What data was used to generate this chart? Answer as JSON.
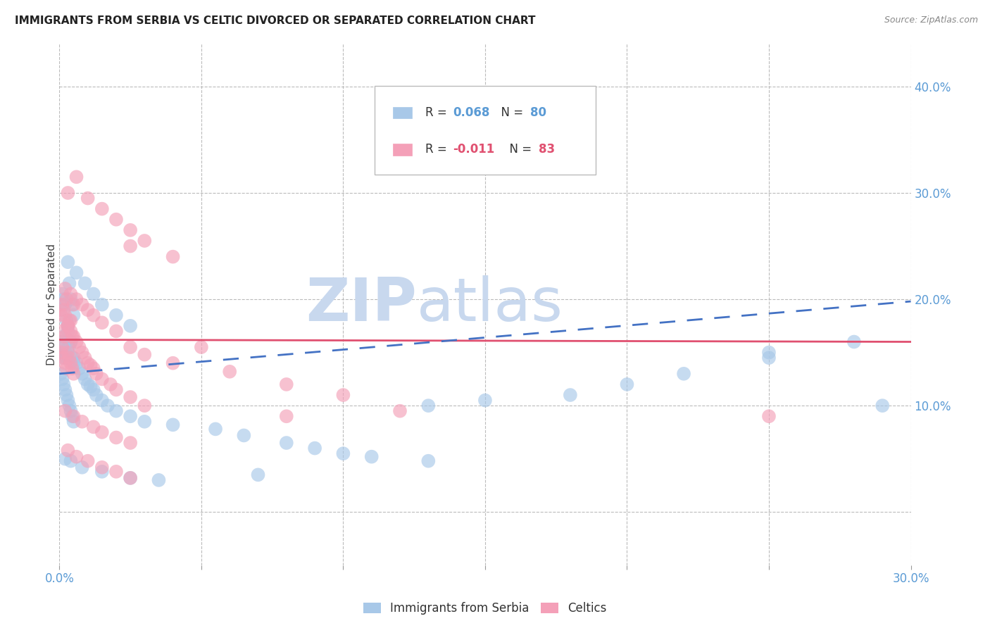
{
  "title": "IMMIGRANTS FROM SERBIA VS CELTIC DIVORCED OR SEPARATED CORRELATION CHART",
  "source": "Source: ZipAtlas.com",
  "ylabel": "Divorced or Separated",
  "xlim": [
    0.0,
    0.3
  ],
  "ylim": [
    -0.05,
    0.44
  ],
  "yticks": [
    0.0,
    0.1,
    0.2,
    0.3,
    0.4
  ],
  "ytick_labels": [
    "",
    "10.0%",
    "20.0%",
    "30.0%",
    "40.0%"
  ],
  "xticks": [
    0.0,
    0.05,
    0.1,
    0.15,
    0.2,
    0.25,
    0.3
  ],
  "xtick_labels": [
    "0.0%",
    "",
    "",
    "",
    "",
    "",
    "30.0%"
  ],
  "blue_color": "#A8C8E8",
  "pink_color": "#F4A0B8",
  "blue_line_color": "#4472C4",
  "pink_line_color": "#E05070",
  "watermark_color": "#C8D8EE",
  "blue_line_x0": 0.0,
  "blue_line_y0": 0.13,
  "blue_line_x1": 0.3,
  "blue_line_y1": 0.198,
  "pink_line_x0": 0.0,
  "pink_line_y0": 0.162,
  "pink_line_x1": 0.3,
  "pink_line_y1": 0.16,
  "blue_scatter_x": [
    0.0005,
    0.001,
    0.0015,
    0.002,
    0.0025,
    0.003,
    0.0035,
    0.004,
    0.0045,
    0.005,
    0.0005,
    0.001,
    0.0015,
    0.002,
    0.0025,
    0.003,
    0.0035,
    0.004,
    0.0045,
    0.005,
    0.0005,
    0.001,
    0.0015,
    0.002,
    0.0025,
    0.003,
    0.0035,
    0.004,
    0.0045,
    0.005,
    0.001,
    0.002,
    0.003,
    0.004,
    0.005,
    0.006,
    0.007,
    0.008,
    0.009,
    0.01,
    0.011,
    0.012,
    0.013,
    0.015,
    0.017,
    0.02,
    0.025,
    0.03,
    0.04,
    0.055,
    0.065,
    0.08,
    0.09,
    0.1,
    0.11,
    0.13,
    0.15,
    0.18,
    0.2,
    0.22,
    0.25,
    0.28,
    0.003,
    0.006,
    0.009,
    0.012,
    0.015,
    0.02,
    0.025,
    0.002,
    0.004,
    0.008,
    0.015,
    0.025,
    0.035,
    0.07,
    0.13,
    0.25,
    0.29
  ],
  "blue_scatter_y": [
    0.19,
    0.205,
    0.2,
    0.195,
    0.18,
    0.175,
    0.215,
    0.2,
    0.195,
    0.185,
    0.155,
    0.16,
    0.165,
    0.15,
    0.145,
    0.17,
    0.155,
    0.16,
    0.145,
    0.14,
    0.13,
    0.125,
    0.12,
    0.115,
    0.11,
    0.105,
    0.1,
    0.095,
    0.09,
    0.085,
    0.145,
    0.15,
    0.155,
    0.16,
    0.145,
    0.14,
    0.135,
    0.13,
    0.125,
    0.12,
    0.118,
    0.115,
    0.11,
    0.105,
    0.1,
    0.095,
    0.09,
    0.085,
    0.082,
    0.078,
    0.072,
    0.065,
    0.06,
    0.055,
    0.052,
    0.048,
    0.105,
    0.11,
    0.12,
    0.13,
    0.145,
    0.16,
    0.235,
    0.225,
    0.215,
    0.205,
    0.195,
    0.185,
    0.175,
    0.05,
    0.048,
    0.042,
    0.038,
    0.032,
    0.03,
    0.035,
    0.1,
    0.15,
    0.1
  ],
  "pink_scatter_x": [
    0.0005,
    0.001,
    0.0015,
    0.002,
    0.0025,
    0.003,
    0.0035,
    0.004,
    0.0045,
    0.005,
    0.0005,
    0.001,
    0.0015,
    0.002,
    0.0025,
    0.003,
    0.0035,
    0.004,
    0.0045,
    0.005,
    0.001,
    0.002,
    0.003,
    0.004,
    0.005,
    0.006,
    0.007,
    0.008,
    0.009,
    0.01,
    0.011,
    0.012,
    0.013,
    0.015,
    0.018,
    0.02,
    0.025,
    0.03,
    0.002,
    0.004,
    0.006,
    0.008,
    0.01,
    0.012,
    0.015,
    0.02,
    0.002,
    0.005,
    0.008,
    0.012,
    0.015,
    0.02,
    0.025,
    0.025,
    0.03,
    0.04,
    0.06,
    0.08,
    0.1,
    0.12,
    0.025,
    0.05,
    0.08,
    0.25,
    0.003,
    0.006,
    0.01,
    0.015,
    0.02,
    0.025,
    0.03,
    0.04,
    0.003,
    0.006,
    0.01,
    0.015,
    0.02,
    0.025
  ],
  "pink_scatter_y": [
    0.185,
    0.195,
    0.19,
    0.185,
    0.2,
    0.175,
    0.18,
    0.17,
    0.165,
    0.195,
    0.15,
    0.155,
    0.145,
    0.14,
    0.135,
    0.15,
    0.145,
    0.14,
    0.135,
    0.13,
    0.17,
    0.165,
    0.175,
    0.18,
    0.165,
    0.16,
    0.155,
    0.15,
    0.145,
    0.14,
    0.138,
    0.135,
    0.13,
    0.125,
    0.12,
    0.115,
    0.108,
    0.1,
    0.21,
    0.205,
    0.2,
    0.195,
    0.19,
    0.185,
    0.178,
    0.17,
    0.095,
    0.09,
    0.085,
    0.08,
    0.075,
    0.07,
    0.065,
    0.155,
    0.148,
    0.14,
    0.132,
    0.12,
    0.11,
    0.095,
    0.25,
    0.155,
    0.09,
    0.09,
    0.3,
    0.315,
    0.295,
    0.285,
    0.275,
    0.265,
    0.255,
    0.24,
    0.058,
    0.052,
    0.048,
    0.042,
    0.038,
    0.032
  ]
}
